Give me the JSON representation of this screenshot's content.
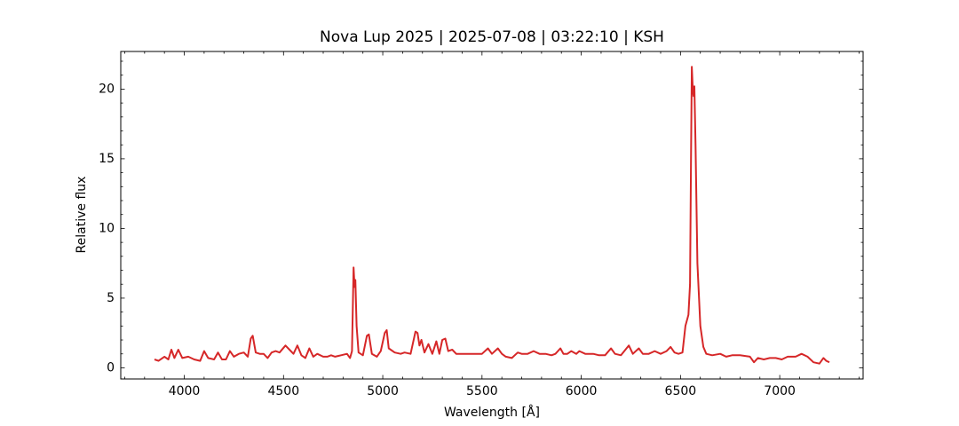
{
  "chart_data": {
    "type": "line",
    "title": "Nova Lup 2025 | 2025-07-08 | 03:22:10 | KSH",
    "xlabel": "Wavelength [Å]",
    "ylabel": "Relative flux",
    "xlim": [
      3680,
      7420
    ],
    "ylim": [
      -0.8,
      22.7
    ],
    "xticks": [
      4000,
      4500,
      5000,
      5500,
      6000,
      6500,
      7000
    ],
    "yticks": [
      0,
      5,
      10,
      15,
      20
    ],
    "xticks_minor": [
      3700,
      3800,
      3900,
      4100,
      4200,
      4300,
      4400,
      4600,
      4700,
      4800,
      4900,
      5100,
      5200,
      5300,
      5400,
      5600,
      5700,
      5800,
      5900,
      6100,
      6200,
      6300,
      6400,
      6600,
      6700,
      6800,
      6900,
      7100,
      7200,
      7300,
      7400
    ],
    "yticks_minor": [
      1,
      2,
      3,
      4,
      6,
      7,
      8,
      9,
      11,
      12,
      13,
      14,
      16,
      17,
      18,
      19,
      21,
      22
    ],
    "grid": false,
    "series": [
      {
        "name": "Nova Lup 2025",
        "color": "#d62728",
        "x": [
          3850,
          3870,
          3900,
          3920,
          3935,
          3950,
          3970,
          3990,
          4020,
          4050,
          4080,
          4100,
          4120,
          4150,
          4170,
          4190,
          4210,
          4230,
          4250,
          4275,
          4300,
          4320,
          4335,
          4345,
          4360,
          4380,
          4400,
          4420,
          4440,
          4460,
          4480,
          4510,
          4530,
          4550,
          4570,
          4590,
          4610,
          4630,
          4650,
          4670,
          4700,
          4720,
          4740,
          4760,
          4790,
          4820,
          4835,
          4845,
          4853,
          4858,
          4862,
          4868,
          4878,
          4900,
          4920,
          4930,
          4945,
          4970,
          4990,
          5010,
          5020,
          5030,
          5060,
          5090,
          5110,
          5140,
          5165,
          5175,
          5185,
          5195,
          5210,
          5230,
          5250,
          5270,
          5285,
          5300,
          5315,
          5330,
          5350,
          5370,
          5400,
          5420,
          5450,
          5480,
          5500,
          5530,
          5550,
          5580,
          5600,
          5620,
          5650,
          5680,
          5700,
          5730,
          5760,
          5790,
          5820,
          5850,
          5870,
          5895,
          5910,
          5930,
          5950,
          5975,
          5990,
          6020,
          6060,
          6090,
          6120,
          6150,
          6170,
          6200,
          6240,
          6260,
          6290,
          6310,
          6340,
          6370,
          6400,
          6430,
          6450,
          6470,
          6490,
          6510,
          6525,
          6540,
          6548,
          6553,
          6557,
          6562,
          6566,
          6570,
          6576,
          6585,
          6600,
          6615,
          6630,
          6660,
          6700,
          6730,
          6760,
          6800,
          6850,
          6870,
          6890,
          6920,
          6950,
          6980,
          7010,
          7040,
          7080,
          7110,
          7140,
          7170,
          7200,
          7220,
          7235,
          7250
        ],
        "values": [
          0.6,
          0.5,
          0.8,
          0.6,
          1.3,
          0.7,
          1.3,
          0.7,
          0.8,
          0.6,
          0.5,
          1.2,
          0.7,
          0.6,
          1.1,
          0.6,
          0.6,
          1.2,
          0.8,
          1.0,
          1.1,
          0.8,
          2.1,
          2.3,
          1.1,
          1.0,
          1.0,
          0.7,
          1.1,
          1.2,
          1.1,
          1.6,
          1.3,
          1.0,
          1.6,
          0.9,
          0.7,
          1.4,
          0.8,
          1.0,
          0.8,
          0.8,
          0.9,
          0.8,
          0.9,
          1.0,
          0.7,
          1.2,
          7.2,
          5.8,
          6.3,
          3.0,
          1.1,
          0.9,
          2.3,
          2.4,
          1.0,
          0.8,
          1.2,
          2.5,
          2.7,
          1.4,
          1.1,
          1.0,
          1.1,
          1.0,
          2.6,
          2.5,
          1.6,
          2.0,
          1.1,
          1.7,
          1.0,
          1.9,
          1.0,
          2.0,
          2.1,
          1.2,
          1.3,
          1.0,
          1.0,
          1.0,
          1.0,
          1.0,
          1.0,
          1.4,
          1.0,
          1.4,
          1.0,
          0.8,
          0.7,
          1.1,
          1.0,
          1.0,
          1.2,
          1.0,
          1.0,
          0.9,
          1.0,
          1.4,
          1.0,
          1.0,
          1.2,
          1.0,
          1.2,
          1.0,
          1.0,
          0.9,
          0.9,
          1.4,
          1.0,
          0.9,
          1.6,
          1.0,
          1.4,
          1.0,
          1.0,
          1.2,
          1.0,
          1.2,
          1.5,
          1.1,
          1.0,
          1.1,
          3.0,
          3.8,
          6.0,
          15,
          21.6,
          20.0,
          19.5,
          20.2,
          16,
          7.5,
          3.0,
          1.5,
          1.0,
          0.9,
          1.0,
          0.8,
          0.9,
          0.9,
          0.8,
          0.4,
          0.7,
          0.6,
          0.7,
          0.7,
          0.6,
          0.8,
          0.8,
          1.0,
          0.8,
          0.4,
          0.3,
          0.7,
          0.5,
          0.4
        ]
      }
    ]
  }
}
